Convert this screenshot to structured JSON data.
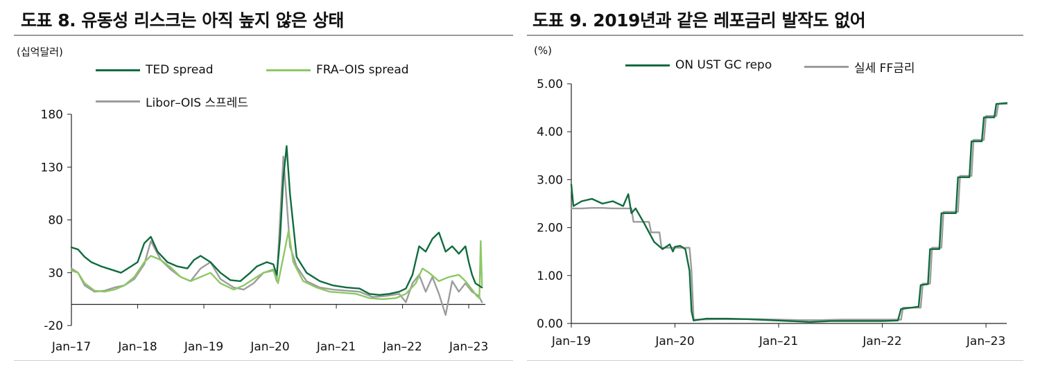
{
  "left": {
    "title": "도표 8. 유동성 리스크는 아직 높지 않은 상태",
    "unit": "(십억달러)",
    "legend": [
      {
        "name": "TED spread",
        "color": "#0f6b3d"
      },
      {
        "name": "FRA–OIS spread",
        "color": "#8cc864"
      },
      {
        "name": "Libor–OIS 스프레드",
        "color": "#9c9c9c"
      }
    ]
  },
  "right": {
    "title": "도표 9. 2019년과 같은 레포금리 발작도 없어",
    "unit": "(%)",
    "legend": [
      {
        "name": "ON UST GC repo",
        "color": "#0f6b3d"
      },
      {
        "name": "실세 FF금리",
        "color": "#9c9c9c"
      }
    ]
  },
  "chart_data": [
    {
      "type": "line",
      "title": "도표 8. 유동성 리스크는 아직 높지 않은 상태",
      "ylabel": "(십억달러)",
      "ylim": [
        -20,
        180
      ],
      "yticks": [
        180,
        130,
        80,
        30,
        -20
      ],
      "xlim": [
        2017.0,
        2023.25
      ],
      "xticks": [
        {
          "label": "Jan–17",
          "x": 2017.0
        },
        {
          "label": "Jan–18",
          "x": 2018.0
        },
        {
          "label": "Jan–19",
          "x": 2019.0
        },
        {
          "label": "Jan–20",
          "x": 2020.0
        },
        {
          "label": "Jan–21",
          "x": 2021.0
        },
        {
          "label": "Jan–22",
          "x": 2022.0
        },
        {
          "label": "Jan–23",
          "x": 2023.0
        }
      ],
      "series": [
        {
          "name": "TED spread",
          "color": "#0f6b3d",
          "x": [
            2017.0,
            2017.1,
            2017.2,
            2017.3,
            2017.45,
            2017.6,
            2017.75,
            2017.9,
            2018.0,
            2018.1,
            2018.2,
            2018.3,
            2018.45,
            2018.6,
            2018.75,
            2018.85,
            2018.95,
            2019.1,
            2019.25,
            2019.4,
            2019.55,
            2019.7,
            2019.8,
            2019.95,
            2020.05,
            2020.1,
            2020.15,
            2020.2,
            2020.25,
            2020.3,
            2020.4,
            2020.55,
            2020.75,
            2020.95,
            2021.15,
            2021.35,
            2021.5,
            2021.65,
            2021.8,
            2021.95,
            2022.05,
            2022.15,
            2022.25,
            2022.35,
            2022.45,
            2022.55,
            2022.65,
            2022.75,
            2022.85,
            2022.95,
            2023.0,
            2023.05,
            2023.1,
            2023.2
          ],
          "y": [
            54,
            52,
            45,
            40,
            36,
            33,
            30,
            36,
            40,
            58,
            64,
            50,
            40,
            36,
            34,
            42,
            46,
            40,
            30,
            23,
            22,
            30,
            36,
            40,
            38,
            28,
            62,
            120,
            150,
            105,
            45,
            30,
            22,
            18,
            16,
            15,
            10,
            9,
            10,
            12,
            15,
            28,
            55,
            50,
            62,
            68,
            50,
            55,
            48,
            55,
            40,
            28,
            20,
            16
          ]
        },
        {
          "name": "FRA–OIS spread",
          "color": "#8cc864",
          "x": [
            2017.0,
            2017.1,
            2017.2,
            2017.35,
            2017.5,
            2017.65,
            2017.8,
            2017.95,
            2018.1,
            2018.2,
            2018.35,
            2018.5,
            2018.65,
            2018.8,
            2018.95,
            2019.1,
            2019.25,
            2019.45,
            2019.6,
            2019.75,
            2019.9,
            2020.05,
            2020.12,
            2020.2,
            2020.28,
            2020.35,
            2020.5,
            2020.7,
            2020.9,
            2021.1,
            2021.3,
            2021.5,
            2021.7,
            2021.9,
            2022.05,
            2022.2,
            2022.3,
            2022.4,
            2022.55,
            2022.7,
            2022.85,
            2022.95,
            2023.05,
            2023.12,
            2023.16,
            2023.18,
            2023.2
          ],
          "y": [
            32,
            30,
            20,
            13,
            12,
            14,
            18,
            26,
            40,
            46,
            42,
            35,
            26,
            22,
            26,
            30,
            20,
            14,
            18,
            24,
            30,
            32,
            20,
            45,
            70,
            40,
            22,
            16,
            12,
            11,
            10,
            6,
            5,
            6,
            10,
            20,
            34,
            30,
            22,
            26,
            28,
            22,
            14,
            8,
            6,
            60,
            18
          ]
        },
        {
          "name": "Libor–OIS 스프레드",
          "color": "#9c9c9c",
          "x": [
            2017.0,
            2017.1,
            2017.2,
            2017.35,
            2017.5,
            2017.65,
            2017.8,
            2017.95,
            2018.1,
            2018.2,
            2018.35,
            2018.5,
            2018.65,
            2018.8,
            2018.95,
            2019.1,
            2019.25,
            2019.45,
            2019.6,
            2019.75,
            2019.9,
            2020.05,
            2020.1,
            2020.15,
            2020.2,
            2020.25,
            2020.3,
            2020.4,
            2020.55,
            2020.75,
            2020.95,
            2021.15,
            2021.35,
            2021.55,
            2021.75,
            2021.95,
            2022.05,
            2022.15,
            2022.25,
            2022.35,
            2022.45,
            2022.55,
            2022.65,
            2022.75,
            2022.85,
            2022.95,
            2023.05,
            2023.15,
            2023.2
          ],
          "y": [
            34,
            30,
            18,
            12,
            13,
            16,
            18,
            24,
            38,
            60,
            42,
            33,
            26,
            22,
            34,
            40,
            24,
            16,
            14,
            20,
            30,
            33,
            22,
            80,
            140,
            98,
            55,
            36,
            22,
            16,
            14,
            13,
            12,
            7,
            8,
            10,
            2,
            20,
            28,
            12,
            26,
            10,
            -10,
            22,
            12,
            20,
            12,
            8,
            2
          ]
        }
      ]
    },
    {
      "type": "line",
      "title": "도표 9. 2019년과 같은 레포금리 발작도 없어",
      "ylabel": "(%)",
      "ylim": [
        0.0,
        5.0
      ],
      "yticks": [
        "5.00",
        "4.00",
        "3.00",
        "2.00",
        "1.00",
        "0.00"
      ],
      "xlim": [
        2019.0,
        2023.2
      ],
      "xticks": [
        {
          "label": "Jan–19",
          "x": 2019.0
        },
        {
          "label": "Jan–20",
          "x": 2020.0
        },
        {
          "label": "Jan–21",
          "x": 2021.0
        },
        {
          "label": "Jan–22",
          "x": 2022.0
        },
        {
          "label": "Jan–23",
          "x": 2023.0
        }
      ],
      "series": [
        {
          "name": "ON UST GC repo",
          "color": "#0f6b3d",
          "x": [
            2019.0,
            2019.02,
            2019.1,
            2019.2,
            2019.3,
            2019.4,
            2019.5,
            2019.55,
            2019.58,
            2019.62,
            2019.7,
            2019.75,
            2019.8,
            2019.88,
            2019.95,
            2019.98,
            2020.0,
            2020.05,
            2020.1,
            2020.14,
            2020.16,
            2020.18,
            2020.3,
            2020.5,
            2020.7,
            2020.9,
            2021.1,
            2021.3,
            2021.5,
            2021.7,
            2021.9,
            2022.0,
            2022.15,
            2022.18,
            2022.35,
            2022.37,
            2022.44,
            2022.46,
            2022.55,
            2022.57,
            2022.71,
            2022.73,
            2022.84,
            2022.86,
            2022.96,
            2022.98,
            2023.08,
            2023.1,
            2023.2
          ],
          "y": [
            2.9,
            2.45,
            2.55,
            2.6,
            2.5,
            2.55,
            2.45,
            2.7,
            2.3,
            2.4,
            2.1,
            1.9,
            1.7,
            1.55,
            1.65,
            1.5,
            1.6,
            1.62,
            1.55,
            1.1,
            0.25,
            0.06,
            0.1,
            0.1,
            0.09,
            0.07,
            0.05,
            0.03,
            0.05,
            0.05,
            0.05,
            0.05,
            0.06,
            0.3,
            0.35,
            0.8,
            0.82,
            1.55,
            1.55,
            2.3,
            2.3,
            3.05,
            3.05,
            3.8,
            3.8,
            4.3,
            4.3,
            4.58,
            4.6
          ]
        },
        {
          "name": "실세 FF금리",
          "color": "#9c9c9c",
          "x": [
            2019.0,
            2019.1,
            2019.2,
            2019.3,
            2019.4,
            2019.5,
            2019.58,
            2019.6,
            2019.75,
            2019.77,
            2019.85,
            2019.87,
            2020.0,
            2020.14,
            2020.16,
            2020.18,
            2020.4,
            2020.6,
            2020.8,
            2021.0,
            2021.2,
            2021.4,
            2021.6,
            2021.8,
            2022.0,
            2022.18,
            2022.2,
            2022.37,
            2022.39,
            2022.46,
            2022.48,
            2022.57,
            2022.59,
            2022.73,
            2022.75,
            2022.86,
            2022.88,
            2022.98,
            2023.0,
            2023.1,
            2023.12,
            2023.2
          ],
          "y": [
            2.4,
            2.4,
            2.41,
            2.41,
            2.4,
            2.4,
            2.4,
            2.12,
            2.12,
            1.9,
            1.9,
            1.58,
            1.58,
            1.58,
            1.1,
            0.08,
            0.09,
            0.09,
            0.09,
            0.08,
            0.07,
            0.07,
            0.08,
            0.08,
            0.08,
            0.08,
            0.33,
            0.33,
            0.83,
            0.83,
            1.58,
            1.58,
            2.33,
            2.33,
            3.08,
            3.08,
            3.83,
            3.83,
            4.33,
            4.33,
            4.58,
            4.58
          ]
        }
      ]
    }
  ]
}
